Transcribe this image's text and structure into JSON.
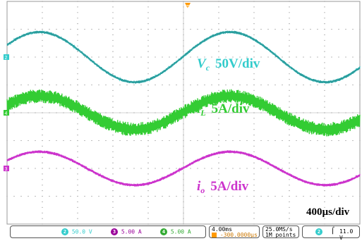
{
  "chart_data": {
    "type": "line",
    "title": "",
    "xlabel": "",
    "ylabel": "",
    "time_scale_label": "400µs/div",
    "grid": true,
    "x_divisions": 10,
    "y_divisions": 8,
    "series": [
      {
        "name": "V_c 50V/div",
        "label_main": "V",
        "label_sub": "c",
        "label_rest": "50V/div",
        "channel": "2",
        "color": "#33cccc",
        "offset_div": 2.0,
        "amplitude_div": 0.9,
        "period_div": 5.4,
        "phase": 0.5,
        "ripple_div": 0.05
      },
      {
        "name": "i_L 5A/div",
        "label_main": "i",
        "label_sub": "L",
        "label_rest": "5A/div",
        "channel": "4",
        "color": "#33cc33",
        "offset_div": 0.0,
        "amplitude_div": 0.6,
        "period_div": 5.4,
        "phase": 0.5,
        "ripple_div": 0.25
      },
      {
        "name": "i_o 5A/div",
        "label_main": "i",
        "label_sub": "o",
        "label_rest": "5A/div",
        "channel": "3",
        "color": "#cc33cc",
        "offset_div": -2.0,
        "amplitude_div": 0.6,
        "period_div": 5.4,
        "phase": 0.5,
        "ripple_div": 0.05
      }
    ]
  },
  "status_bar": {
    "ch2": {
      "num": "2",
      "val": "50.0 V",
      "color": "#33cccc"
    },
    "ch3": {
      "num": "3",
      "val": "5.00 A",
      "color": "#990099"
    },
    "ch4": {
      "num": "4",
      "val": "5.00 A",
      "color": "#33aa33"
    },
    "timebase": "4.00ms",
    "trigger_pos": "-300.0000µs",
    "sample_rate": "25.0MS/s",
    "record_length": "1M points",
    "trigger_ch": "2",
    "trigger_level": "11.0 V"
  }
}
